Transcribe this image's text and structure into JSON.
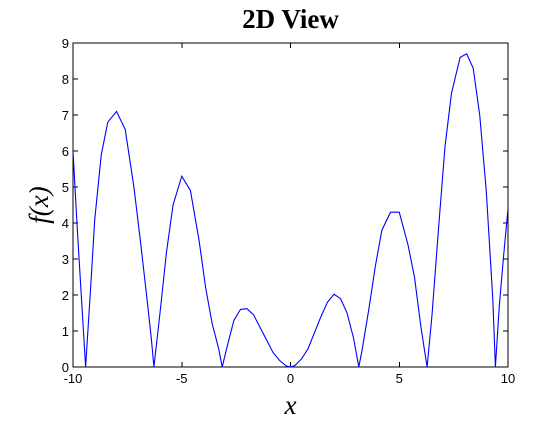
{
  "chart_data": {
    "type": "line",
    "title": "2D View",
    "xlabel": "x",
    "ylabel": "f(x)",
    "xlim": [
      -10,
      10
    ],
    "ylim": [
      0,
      9
    ],
    "grid": false,
    "legend": "none",
    "x_ticks": [
      -10,
      -5,
      0,
      5,
      10
    ],
    "y_ticks": [
      0,
      1,
      2,
      3,
      4,
      5,
      6,
      7,
      8,
      9
    ],
    "x_tick_labels": [
      "-10",
      "-5",
      "0",
      "5",
      "10"
    ],
    "y_tick_labels": [
      "0",
      "1",
      "2",
      "3",
      "4",
      "5",
      "6",
      "7",
      "8",
      "9"
    ],
    "series": [
      {
        "color": "#0000ff",
        "x": [
          -10,
          -9.8,
          -9.6,
          -9.42,
          -9.2,
          -9.0,
          -8.7,
          -8.4,
          -8.0,
          -7.6,
          -7.2,
          -6.9,
          -6.6,
          -6.4,
          -6.28,
          -6.0,
          -5.7,
          -5.4,
          -5.0,
          -4.6,
          -4.2,
          -3.9,
          -3.6,
          -3.3,
          -3.14,
          -2.9,
          -2.6,
          -2.3,
          -2.0,
          -1.7,
          -1.4,
          -1.1,
          -0.8,
          -0.5,
          -0.2,
          0,
          0.2,
          0.5,
          0.8,
          1.1,
          1.4,
          1.7,
          2.0,
          2.3,
          2.6,
          2.9,
          3.14,
          3.3,
          3.6,
          3.9,
          4.2,
          4.6,
          5.0,
          5.4,
          5.7,
          6.0,
          6.28,
          6.5,
          6.8,
          7.1,
          7.4,
          7.8,
          8.1,
          8.4,
          8.7,
          9.0,
          9.3,
          9.42,
          9.6,
          9.8,
          10
        ],
        "y": [
          6.0,
          3.8,
          1.8,
          0.0,
          2.1,
          4.1,
          5.9,
          6.8,
          7.1,
          6.6,
          5.0,
          3.5,
          1.9,
          0.8,
          0.0,
          1.5,
          3.2,
          4.5,
          5.3,
          4.9,
          3.5,
          2.2,
          1.2,
          0.5,
          0.0,
          0.6,
          1.3,
          1.6,
          1.62,
          1.45,
          1.1,
          0.75,
          0.4,
          0.18,
          0.03,
          0.0,
          0.04,
          0.22,
          0.5,
          0.95,
          1.4,
          1.8,
          2.02,
          1.9,
          1.5,
          0.8,
          0.0,
          0.5,
          1.6,
          2.8,
          3.8,
          4.3,
          4.3,
          3.4,
          2.5,
          1.1,
          0.0,
          1.4,
          3.8,
          6.1,
          7.6,
          8.6,
          8.7,
          8.3,
          7.0,
          4.9,
          1.9,
          0.0,
          1.7,
          3.1,
          4.4
        ]
      }
    ]
  }
}
